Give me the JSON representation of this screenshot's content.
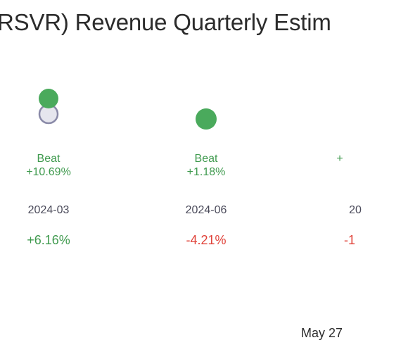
{
  "title": "RSVR) Revenue Quarterly Estim",
  "footer_date": "May 27",
  "colors": {
    "beat": "#3f9a4e",
    "negative": "#e0433a",
    "estimate_fill": "#e6e6ee",
    "estimate_stroke": "#8a8aa8"
  },
  "chart_data": {
    "type": "scatter",
    "title": "RSVR) Revenue Quarterly Estim",
    "quarters": [
      {
        "period": "2024-03",
        "result": "Beat",
        "surprise": "+10.69%",
        "growth": "+6.16%",
        "growth_sign": "pos",
        "estimate_shown": true
      },
      {
        "period": "2024-06",
        "result": "Beat",
        "surprise": "+1.18%",
        "growth": "-4.21%",
        "growth_sign": "neg",
        "estimate_shown": false
      },
      {
        "period": "20",
        "result": "",
        "surprise": "+",
        "growth": "-1",
        "growth_sign": "neg",
        "estimate_shown": false
      }
    ]
  }
}
